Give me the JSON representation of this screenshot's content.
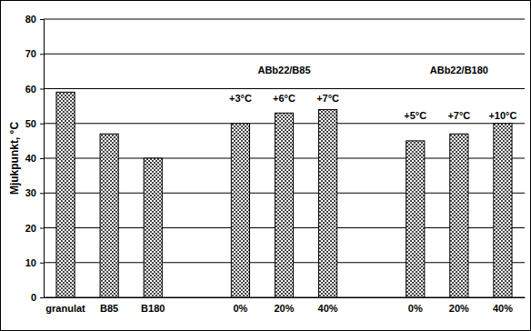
{
  "chart_data": {
    "type": "bar",
    "y_label": "Mjukpunkt, °C",
    "categories": [
      "granulat",
      "B85",
      "B180",
      null,
      "0%",
      "20%",
      "40%",
      null,
      "0%",
      "20%",
      "40%"
    ],
    "values": [
      59,
      47,
      40,
      null,
      50,
      53,
      54,
      null,
      45,
      47,
      50
    ],
    "color": "#303030",
    "ylim": [
      0,
      80
    ],
    "yticks": [
      0,
      10,
      20,
      30,
      40,
      50,
      60,
      70,
      80
    ],
    "grid": true,
    "annotations": [
      {
        "text": "ABb22/B85",
        "x": 5,
        "y": 65
      },
      {
        "text": "ABb22/B180",
        "x": 9,
        "y": 65
      },
      {
        "text": "+3°C",
        "x": 4,
        "y": 57
      },
      {
        "text": "+6°C",
        "x": 5,
        "y": 57
      },
      {
        "text": "+7°C",
        "x": 6,
        "y": 57
      },
      {
        "text": "+5°C",
        "x": 8,
        "y": 52
      },
      {
        "text": "+7°C",
        "x": 9,
        "y": 52
      },
      {
        "text": "+10°C",
        "x": 10,
        "y": 52
      }
    ]
  }
}
